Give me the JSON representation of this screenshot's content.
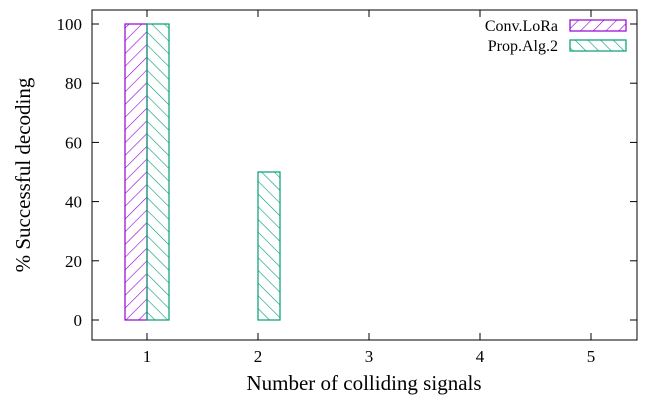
{
  "chart_data": {
    "type": "bar",
    "categories": [
      "1",
      "2",
      "3",
      "4",
      "5"
    ],
    "series": [
      {
        "name": "Conv.LoRa",
        "values": [
          100,
          0,
          0,
          0,
          0
        ],
        "color": "#9400d3",
        "pattern": "forward-hatch"
      },
      {
        "name": "Prop.Alg.2",
        "values": [
          100,
          50,
          0,
          0,
          0
        ],
        "color": "#009e73",
        "pattern": "backward-hatch"
      }
    ],
    "xlabel": "Number of colliding signals",
    "ylabel": "% Successful decoding",
    "ylim": [
      0,
      100
    ],
    "yticks": [
      0,
      20,
      40,
      60,
      80,
      100
    ],
    "legend": "top-right",
    "grid": false
  }
}
